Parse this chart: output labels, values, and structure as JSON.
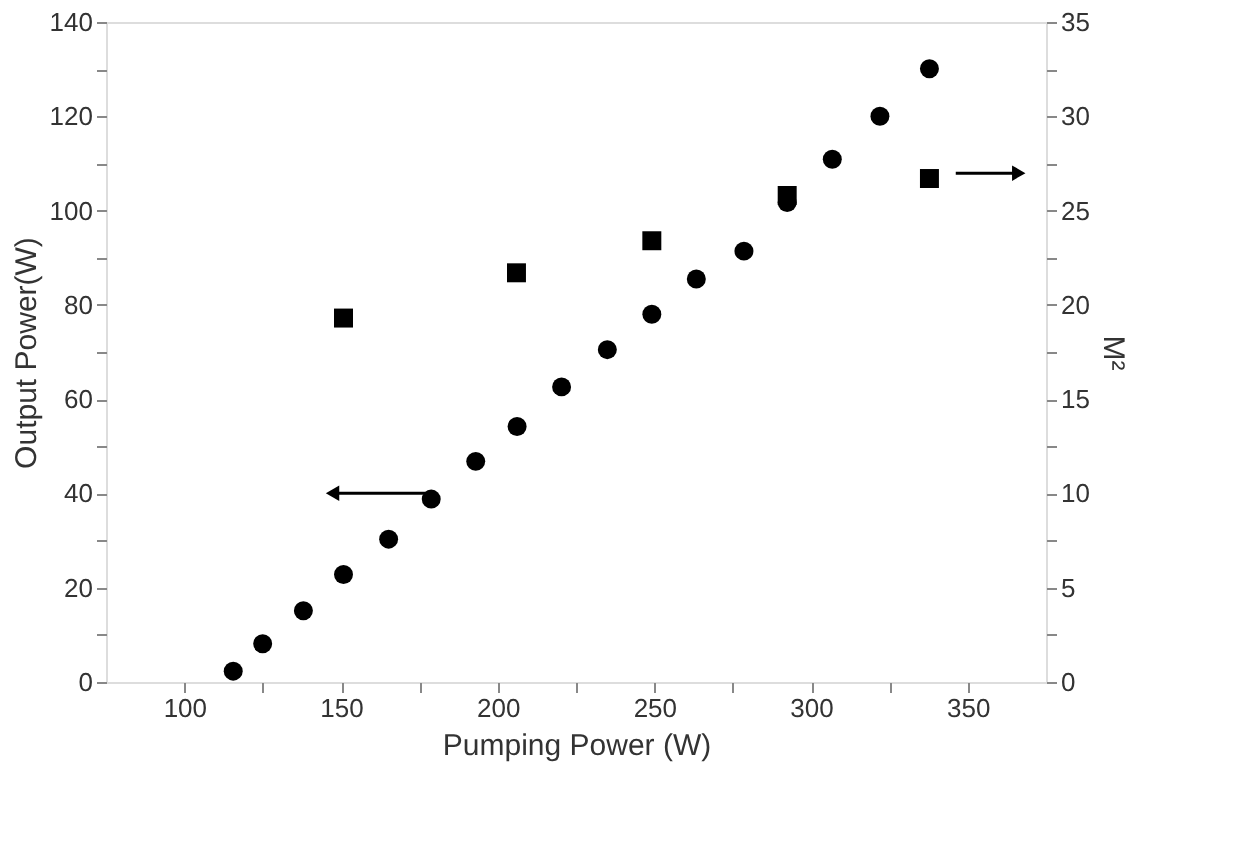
{
  "chart_data": {
    "type": "scatter",
    "xlabel": "Pumping Power (W)",
    "ylabel": "Output Power(W)",
    "y2label": "M²",
    "series": [
      {
        "color": "#000000",
        "marker": "circle",
        "x": [
          115.6,
          125,
          138,
          150.8,
          165.2,
          178.8,
          193,
          206.2,
          220.4,
          235,
          249.2,
          263.4,
          278.6,
          292.4,
          306.8,
          322,
          337.8
        ],
        "values": [
          2.3,
          8.1,
          15.1,
          22.8,
          30.3,
          38.8,
          46.8,
          54.2,
          62.6,
          70.5,
          78,
          85.5,
          91.4,
          101.7,
          110.9,
          120,
          130.1
        ]
      },
      {
        "color": "#000000",
        "marker": "square",
        "axis": "y2",
        "x": [
          150.8,
          206,
          249.2,
          292.4,
          337.8
        ],
        "values": [
          19.3,
          21.7,
          23.4,
          25.8,
          26.7
        ]
      }
    ],
    "xlim": [
      75,
      375
    ],
    "xticks": [
      100,
      {
        "value": 125,
        "label": null
      },
      150,
      {
        "value": 175,
        "label": null
      },
      200,
      {
        "value": 225,
        "label": null
      },
      250,
      {
        "value": 275,
        "label": null
      },
      300,
      {
        "value": 325,
        "label": null
      },
      350
    ],
    "ylim": [
      0,
      140
    ],
    "yticks": [
      0,
      {
        "value": 10,
        "label": null
      },
      20,
      {
        "value": 30,
        "label": null
      },
      40,
      {
        "value": 50,
        "label": null
      },
      60,
      {
        "value": 70,
        "label": null
      },
      80,
      {
        "value": 90,
        "label": null
      },
      100,
      {
        "value": 110,
        "label": null
      },
      120,
      {
        "value": 130,
        "label": null
      },
      140
    ],
    "y2lim": [
      0,
      35
    ],
    "y2ticks": [
      0,
      {
        "value": 2.5,
        "label": null
      },
      5,
      {
        "value": 7.5,
        "label": null
      },
      10,
      {
        "value": 12.5,
        "label": null
      },
      15,
      {
        "value": 17.5,
        "label": null
      },
      20,
      {
        "value": 22.5,
        "label": null
      },
      25,
      {
        "value": 27.5,
        "label": null
      },
      30,
      {
        "value": 32.5,
        "label": null
      },
      35
    ],
    "grid": false
  }
}
